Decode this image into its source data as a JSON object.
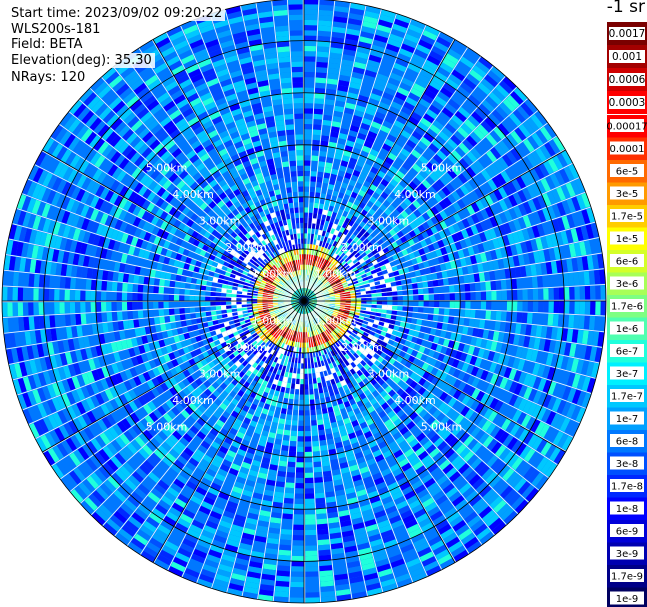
{
  "header": {
    "start_time": "Start time: 2023/09/02 09:20:22",
    "device": "WLS200s-181",
    "field": "Field: BETA",
    "elevation": "Elevation(deg): 35.30",
    "nrays": "NRays: 120"
  },
  "colorbar": {
    "unit_label": "-1 sr",
    "top_labels": [
      "0.0017",
      "0.001",
      "0.0006",
      "0.0003"
    ],
    "top_colors": [
      "#7a0000",
      "#a30000",
      "#cf0000",
      "#ff0000"
    ],
    "labels": [
      "0.00017",
      "0.0001",
      "6e-5",
      "3e-5",
      "1.7e-5",
      "1e-5",
      "6e-6",
      "3e-6",
      "1.7e-6",
      "1e-6",
      "6e-7",
      "3e-7",
      "1.7e-7",
      "1e-7",
      "6e-8",
      "3e-8",
      "1.7e-8",
      "1e-8",
      "6e-9",
      "3e-9",
      "1.7e-9",
      "1e-9"
    ],
    "colors": [
      "#ff0000",
      "#ff3000",
      "#ff6a00",
      "#ff9a00",
      "#ffcd00",
      "#ffff00",
      "#d4ff2a",
      "#a8ff57",
      "#7dff82",
      "#4fffb0",
      "#20ffdc",
      "#00f0ff",
      "#00c8ff",
      "#00a0ff",
      "#0078ff",
      "#0050ff",
      "#0028ff",
      "#0000ff",
      "#0000d8",
      "#0000b0",
      "#000088",
      "#000060"
    ]
  },
  "chart_data": {
    "type": "heatmap",
    "projection": "polar (PPI scan)",
    "field": "BETA",
    "elevation_deg": 35.3,
    "n_rays": 120,
    "range_rings_km": [
      1.0,
      2.0,
      3.0,
      4.0,
      5.0
    ],
    "ring_labels": [
      "1.00km",
      "2.00km",
      "3.00km",
      "4.00km",
      "5.00km"
    ],
    "max_range_km": 5.8,
    "background_level": "3e-8 to 1e-7",
    "high_return_ring_km": [
      0.65,
      0.85
    ],
    "high_return_level": "0.0003 to 0.0017"
  }
}
